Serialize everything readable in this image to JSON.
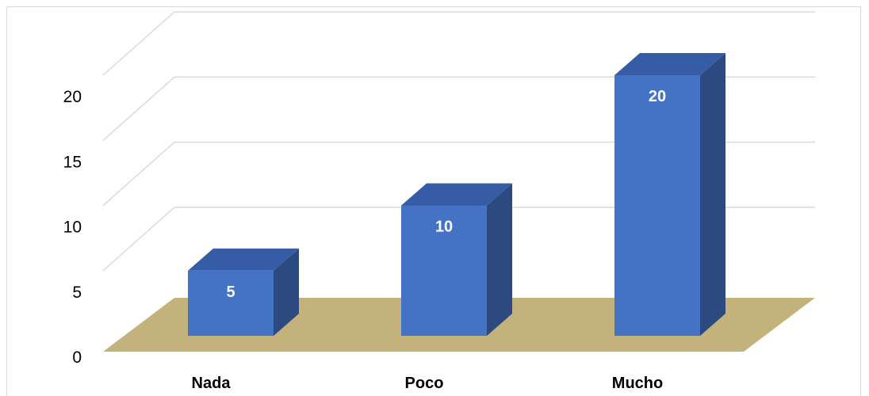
{
  "chart_data": {
    "type": "bar",
    "three_d": true,
    "categories": [
      "Nada",
      "Poco",
      "Mucho"
    ],
    "values": [
      5,
      10,
      20
    ],
    "value_labels": [
      "5",
      "10",
      "20"
    ],
    "yticks": [
      0,
      5,
      10,
      15,
      20
    ],
    "ytick_labels": [
      "0",
      "5",
      "10",
      "15",
      "20"
    ],
    "ylim": [
      0,
      20
    ],
    "grid": true,
    "legend": "none"
  },
  "colors": {
    "bar_front": "#4472c4",
    "bar_top": "#355ca5",
    "bar_side": "#2c4a80",
    "floor": "#c4b27c",
    "gridline": "#d9d9d9",
    "data_label": "#ffffff"
  }
}
